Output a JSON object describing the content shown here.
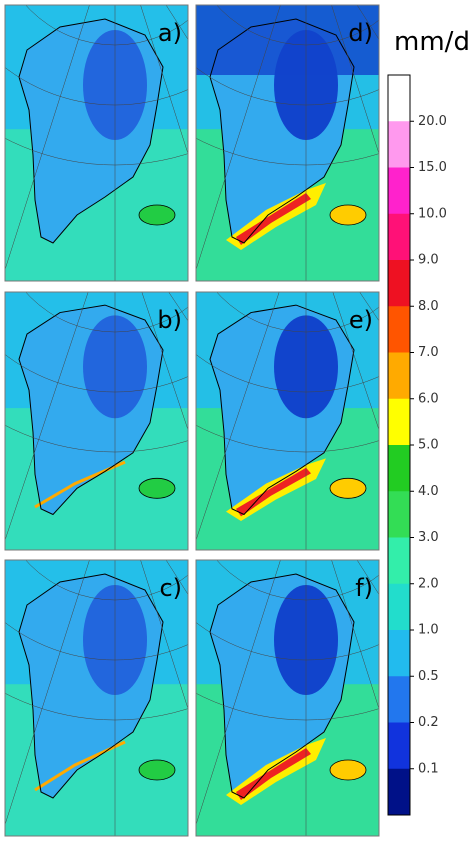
{
  "panels": [
    {
      "label": "a)"
    },
    {
      "label": "d)"
    },
    {
      "label": "b)"
    },
    {
      "label": "e)"
    },
    {
      "label": "c)"
    },
    {
      "label": "f)"
    }
  ],
  "colorbar": {
    "unit": "mm/d",
    "ticks": [
      {
        "value": 20,
        "label": "20.0"
      },
      {
        "value": 15,
        "label": "15.0"
      },
      {
        "value": 10,
        "label": "10.0"
      },
      {
        "value": 9,
        "label": "9.0"
      },
      {
        "value": 8,
        "label": "8.0"
      },
      {
        "value": 7,
        "label": "7.0"
      },
      {
        "value": 6,
        "label": "6.0"
      },
      {
        "value": 5,
        "label": "5.0"
      },
      {
        "value": 4,
        "label": "4.0"
      },
      {
        "value": 3,
        "label": "3.0"
      },
      {
        "value": 2,
        "label": "2.0"
      },
      {
        "value": 1,
        "label": "1.0"
      },
      {
        "value": 0.5,
        "label": "0.5"
      },
      {
        "value": 0.2,
        "label": "0.2"
      },
      {
        "value": 0.1,
        "label": "0.1"
      }
    ],
    "colors": [
      "#ffffff",
      "#ff99ee",
      "#ff22cc",
      "#ff1177",
      "#ee1122",
      "#ff5500",
      "#ffaa00",
      "#ffff00",
      "#22cc22",
      "#33dd55",
      "#33eeaa",
      "#22ddcc",
      "#22bbee",
      "#2277ee",
      "#1133dd",
      "#001188"
    ]
  }
}
